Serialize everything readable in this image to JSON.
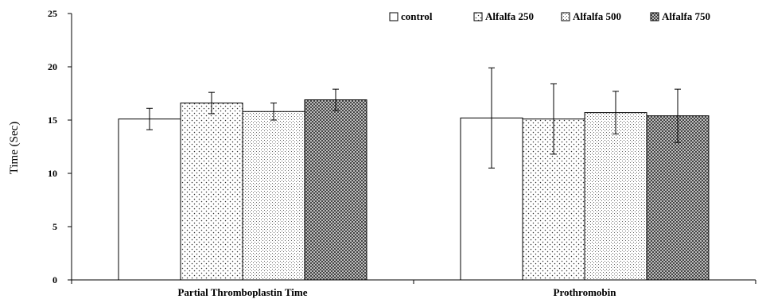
{
  "chart_data": {
    "type": "bar",
    "title": "",
    "xlabel": "",
    "ylabel": "Time (Sec)",
    "ylim": [
      0,
      25
    ],
    "yticks": [
      0,
      5,
      10,
      15,
      20,
      25
    ],
    "grid": false,
    "legend_position": "top-right",
    "categories": [
      "Partial Thromboplastin Time",
      "Prothromobin"
    ],
    "series": [
      {
        "name": "control",
        "values": [
          15.1,
          15.2
        ],
        "errors": [
          1.0,
          4.7
        ],
        "pattern": "none"
      },
      {
        "name": "Alfalfa 250",
        "values": [
          16.6,
          15.1
        ],
        "errors": [
          1.0,
          3.3
        ],
        "pattern": "sparse-dots"
      },
      {
        "name": "Alfalfa 500",
        "values": [
          15.8,
          15.7
        ],
        "errors": [
          0.8,
          2.0
        ],
        "pattern": "dense-dots"
      },
      {
        "name": "Alfalfa 750",
        "values": [
          16.9,
          15.4
        ],
        "errors": [
          1.0,
          2.5
        ],
        "pattern": "crosshatch"
      }
    ]
  }
}
